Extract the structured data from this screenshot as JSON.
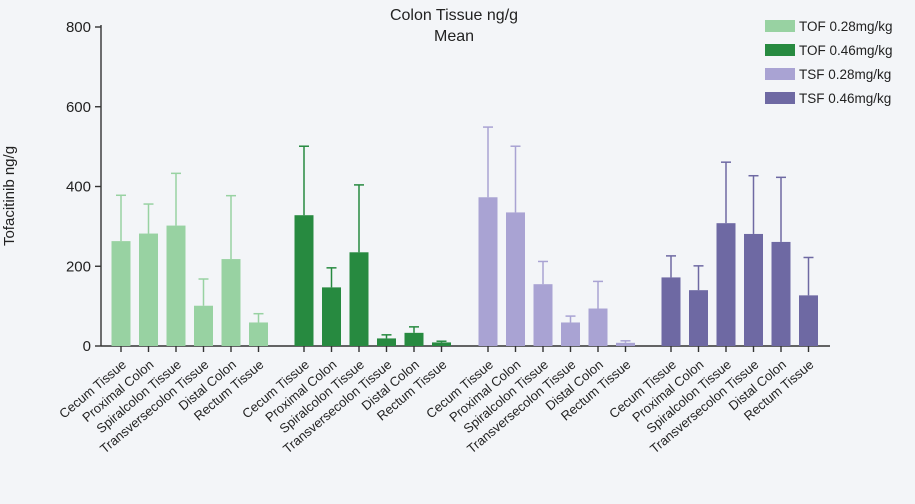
{
  "chart_data": {
    "type": "bar",
    "title": "Colon Tissue ng/g",
    "subtitle": "Mean",
    "ylabel": "Tofacitinib ng/g",
    "xlabel": "",
    "ylim": [
      0,
      800
    ],
    "yticks": [
      0,
      200,
      400,
      600,
      800
    ],
    "grid": false,
    "legend_position": "top-right",
    "categories": [
      "Cecum Tissue",
      "Proximal Colon",
      "Spiralcolon Tissue",
      "Transversecolon Tissue",
      "Distal Colon",
      "Rectum Tissue"
    ],
    "series": [
      {
        "name": "TOF 0.28mg/kg",
        "color": "#98d2a2",
        "values": [
          263,
          282,
          302,
          101,
          218,
          59
        ],
        "error_upper": [
          378,
          356,
          433,
          168,
          377,
          81
        ]
      },
      {
        "name": "TOF 0.46mg/kg",
        "color": "#278a40",
        "values": [
          328,
          147,
          235,
          19,
          33,
          9
        ],
        "error_upper": [
          501,
          196,
          404,
          28,
          48,
          12
        ]
      },
      {
        "name": "TSF 0.28mg/kg",
        "color": "#a9a3d3",
        "values": [
          373,
          335,
          155,
          59,
          94,
          8
        ],
        "error_upper": [
          549,
          501,
          212,
          75,
          162,
          13
        ]
      },
      {
        "name": "TSF 0.46mg/kg",
        "color": "#6e69a3",
        "values": [
          172,
          140,
          308,
          281,
          261,
          127
        ],
        "error_upper": [
          226,
          201,
          461,
          427,
          423,
          222
        ]
      }
    ]
  }
}
